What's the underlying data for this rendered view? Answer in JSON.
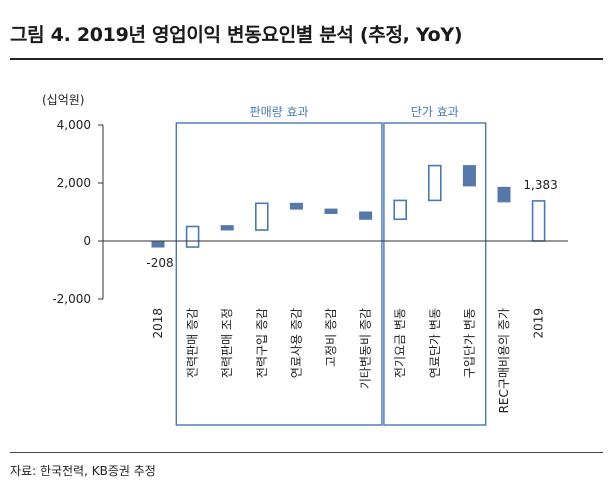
{
  "title": "그림 4. 2019년 영업이익 변동요인별 분석 (추정, YoY)",
  "source": "자료: 한국전력, KB증권 추정",
  "colors": {
    "fill": "#5677aa",
    "outline": "#4a78b6",
    "axis": "#333333"
  },
  "chart_data": {
    "type": "bar",
    "subtype": "waterfall",
    "unit_label": "(십억원)",
    "ylim": [
      -2000,
      4000
    ],
    "yticks": [
      -2000,
      0,
      2000,
      4000
    ],
    "ytick_labels": [
      "-2,000",
      "0",
      "2,000",
      "4,000"
    ],
    "groups": [
      {
        "label": "판매량 효과",
        "from": 1,
        "to": 6
      },
      {
        "label": "단가 효과",
        "from": 7,
        "to": 9
      }
    ],
    "bars": [
      {
        "category": "2018",
        "low": -208,
        "high": 0,
        "style": "filled",
        "value_label": "-208"
      },
      {
        "category": "전력판매 증감",
        "low": -208,
        "high": 500,
        "style": "outline",
        "value_label": ""
      },
      {
        "category": "전력판매 조정",
        "low": 380,
        "high": 530,
        "style": "filled",
        "value_label": ""
      },
      {
        "category": "전력구입 증감",
        "low": 380,
        "high": 1300,
        "style": "outline",
        "value_label": ""
      },
      {
        "category": "연료사용 증감",
        "low": 1100,
        "high": 1300,
        "style": "filled",
        "value_label": ""
      },
      {
        "category": "고정비 증감",
        "low": 950,
        "high": 1100,
        "style": "filled",
        "value_label": ""
      },
      {
        "category": "기타변동비 증감",
        "low": 750,
        "high": 1000,
        "style": "filled",
        "value_label": ""
      },
      {
        "category": "전기요금 변동",
        "low": 750,
        "high": 1400,
        "style": "outline",
        "value_label": ""
      },
      {
        "category": "연료단가 변동",
        "low": 1400,
        "high": 2600,
        "style": "outline",
        "value_label": ""
      },
      {
        "category": "구입단가 변동",
        "low": 1900,
        "high": 2600,
        "style": "filled",
        "value_label": ""
      },
      {
        "category": "REC구매비용의 증가",
        "low": 1350,
        "high": 1850,
        "style": "filled",
        "value_label": ""
      },
      {
        "category": "2019",
        "low": 0,
        "high": 1383,
        "style": "outline",
        "value_label": "1,383"
      }
    ]
  }
}
